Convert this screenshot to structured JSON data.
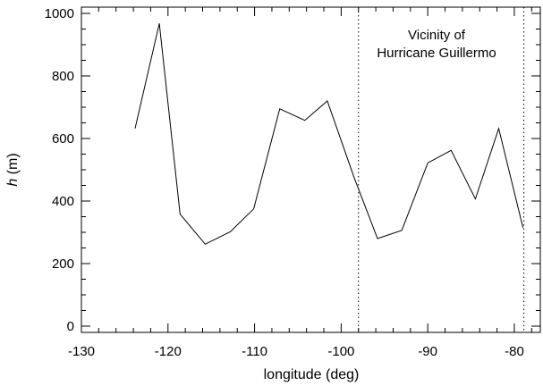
{
  "chart_data": {
    "type": "line",
    "xlabel": "longitude (deg)",
    "ylabel_italic": "h",
    "ylabel_unit": " (m)",
    "xlim": [
      -130,
      -77
    ],
    "ylim": [
      -20,
      1020
    ],
    "x_ticks": [
      -130,
      -120,
      -110,
      -100,
      -90,
      -80
    ],
    "y_ticks": [
      0,
      200,
      400,
      600,
      800,
      1000
    ],
    "x_minor_step": 2,
    "y_minor_step": 50,
    "grid": false,
    "series": [
      {
        "x": [
          -123.8,
          -121.0,
          -118.6,
          -115.7,
          -112.8,
          -110.1,
          -107.1,
          -104.2,
          -101.6,
          -98.5,
          -95.8,
          -93.0,
          -90.0,
          -87.3,
          -84.5,
          -81.8,
          -79.0
        ],
        "y": [
          632,
          968,
          358,
          262,
          302,
          375,
          695,
          658,
          720,
          475,
          280,
          306,
          522,
          562,
          407,
          632,
          315
        ]
      }
    ],
    "vertical_lines": [
      {
        "x": -98.0,
        "style": "dotted"
      },
      {
        "x": -78.9,
        "style": "dotted"
      }
    ],
    "annotation": {
      "line1": "Vicinity of",
      "line2": "Hurricane Guillermo"
    }
  }
}
